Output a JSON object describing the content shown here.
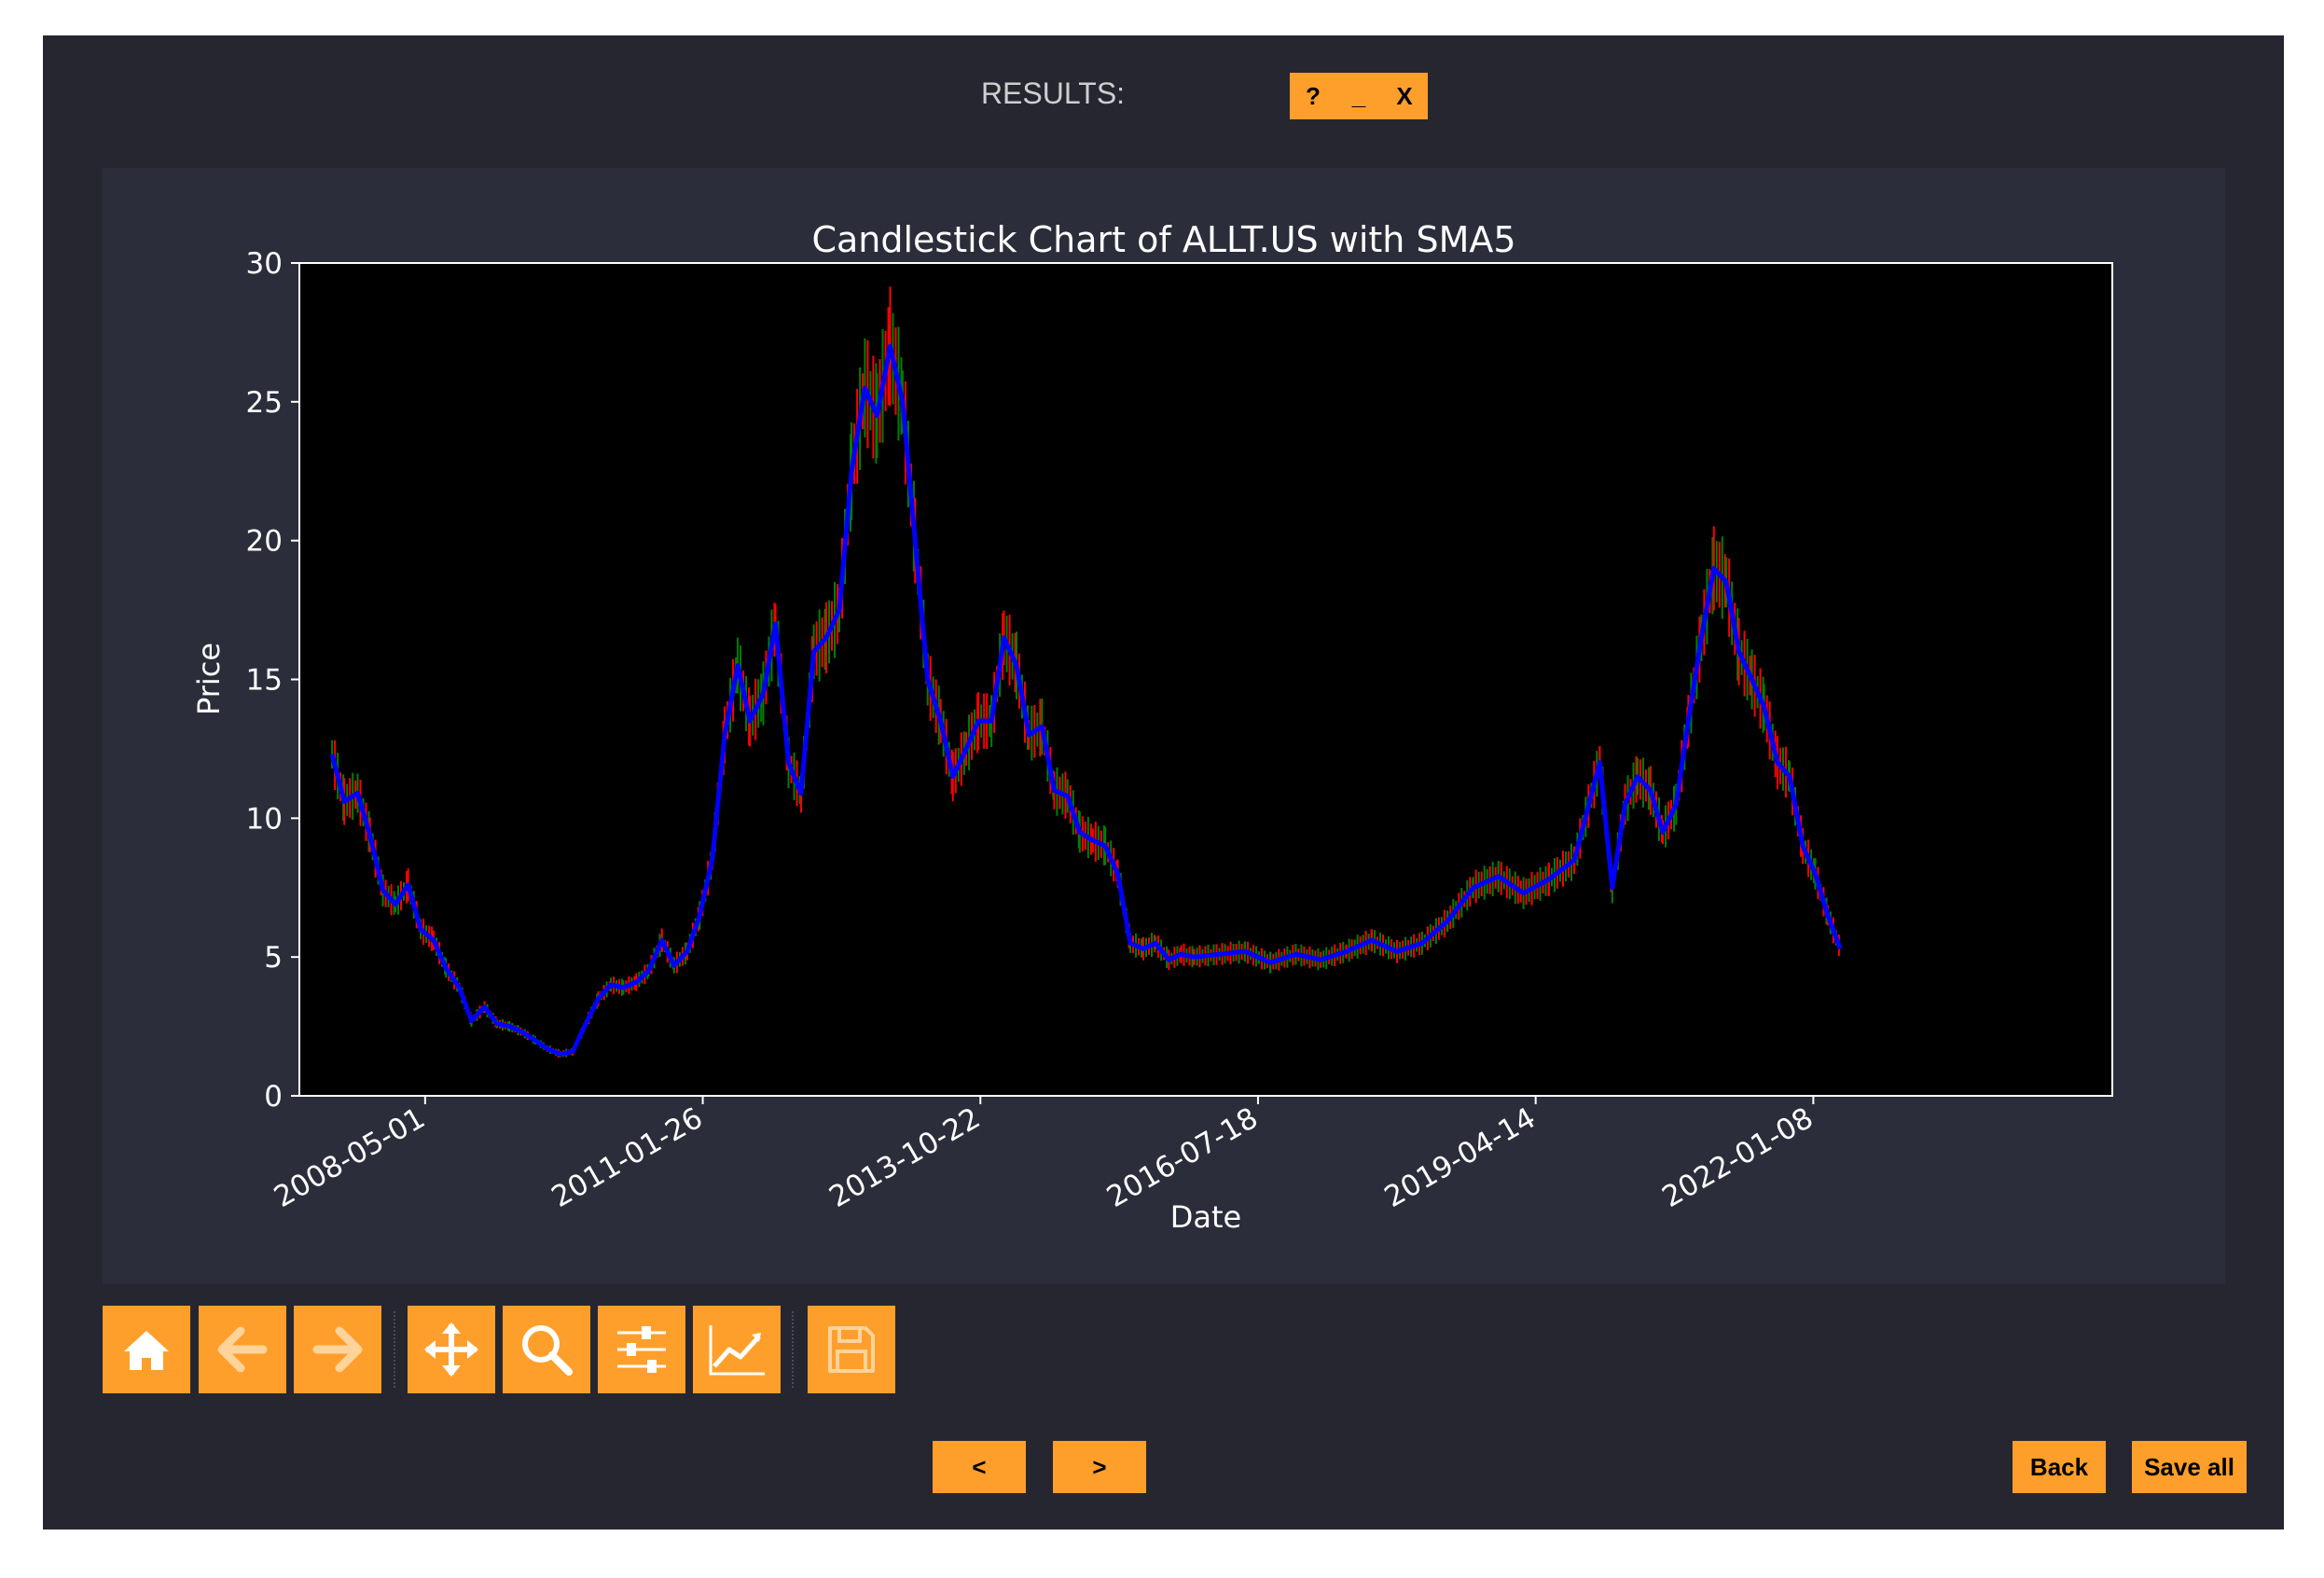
{
  "window": {
    "title": "RESULTS:",
    "help_label": "?",
    "minimize_label": "_",
    "close_label": "X"
  },
  "toolbar": {
    "buttons": [
      {
        "icon": "home-icon"
      },
      {
        "icon": "back-arrow-icon"
      },
      {
        "icon": "forward-arrow-icon"
      },
      {
        "icon": "pan-icon"
      },
      {
        "icon": "zoom-icon"
      },
      {
        "icon": "configure-subplots-icon"
      },
      {
        "icon": "edit-axis-icon"
      },
      {
        "icon": "save-icon"
      }
    ]
  },
  "nav": {
    "prev_label": "<",
    "next_label": ">",
    "back_label": "Back",
    "save_all_label": "Save all"
  },
  "colors": {
    "accent": "#ff9f2b",
    "window_bg": "#262631",
    "panel_bg": "#2c2d3b",
    "plot_bg": "#000000",
    "sma_line": "#0000ff",
    "candle_up": "#008000",
    "candle_down": "#ff0000"
  },
  "chart_data": {
    "type": "line",
    "title": "Candlestick Chart of ALLT.US with SMA5",
    "xlabel": "Date",
    "ylabel": "Price",
    "ylim": [
      0,
      30
    ],
    "y_ticks": [
      0,
      5,
      10,
      15,
      20,
      25,
      30
    ],
    "x_ticks": [
      "2008-05-01",
      "2011-01-26",
      "2013-10-22",
      "2016-07-18",
      "2019-04-14",
      "2022-01-08"
    ],
    "xlim": [
      "2007-02-03",
      "2024-12-20"
    ],
    "grid": false,
    "series": [
      {
        "color": "#0000ff",
        "points": [
          [
            "2007-06-01",
            12.3
          ],
          [
            "2007-07-15",
            10.6
          ],
          [
            "2007-09-01",
            10.9
          ],
          [
            "2007-10-15",
            9.4
          ],
          [
            "2007-12-01",
            7.4
          ],
          [
            "2008-01-15",
            6.9
          ],
          [
            "2008-03-01",
            7.6
          ],
          [
            "2008-04-15",
            6.0
          ],
          [
            "2008-06-01",
            5.6
          ],
          [
            "2008-07-15",
            4.6
          ],
          [
            "2008-09-01",
            3.9
          ],
          [
            "2008-10-15",
            2.7
          ],
          [
            "2008-12-01",
            3.2
          ],
          [
            "2009-01-15",
            2.6
          ],
          [
            "2009-03-01",
            2.5
          ],
          [
            "2009-04-15",
            2.3
          ],
          [
            "2009-06-01",
            2.0
          ],
          [
            "2009-07-15",
            1.7
          ],
          [
            "2009-09-01",
            1.5
          ],
          [
            "2009-10-15",
            1.6
          ],
          [
            "2009-12-01",
            2.6
          ],
          [
            "2010-01-15",
            3.5
          ],
          [
            "2010-03-01",
            4.0
          ],
          [
            "2010-04-15",
            3.9
          ],
          [
            "2010-06-01",
            4.1
          ],
          [
            "2010-07-15",
            4.5
          ],
          [
            "2010-09-01",
            5.6
          ],
          [
            "2010-10-15",
            4.7
          ],
          [
            "2010-12-01",
            5.2
          ],
          [
            "2011-01-15",
            6.5
          ],
          [
            "2011-03-01",
            8.5
          ],
          [
            "2011-04-15",
            13.0
          ],
          [
            "2011-06-01",
            15.5
          ],
          [
            "2011-07-15",
            13.5
          ],
          [
            "2011-09-01",
            14.5
          ],
          [
            "2011-10-15",
            17.0
          ],
          [
            "2011-12-01",
            12.0
          ],
          [
            "2012-01-15",
            10.9
          ],
          [
            "2012-03-01",
            16.0
          ],
          [
            "2012-04-15",
            16.5
          ],
          [
            "2012-06-01",
            17.5
          ],
          [
            "2012-07-15",
            22.5
          ],
          [
            "2012-09-01",
            25.5
          ],
          [
            "2012-10-15",
            24.5
          ],
          [
            "2012-12-01",
            27.0
          ],
          [
            "2013-01-15",
            25.0
          ],
          [
            "2013-03-01",
            20.0
          ],
          [
            "2013-04-15",
            15.0
          ],
          [
            "2013-06-01",
            13.5
          ],
          [
            "2013-07-15",
            11.5
          ],
          [
            "2013-09-01",
            12.5
          ],
          [
            "2013-10-15",
            13.5
          ],
          [
            "2013-12-01",
            13.5
          ],
          [
            "2014-01-15",
            16.5
          ],
          [
            "2014-03-01",
            15.5
          ],
          [
            "2014-04-15",
            13.0
          ],
          [
            "2014-06-01",
            13.3
          ],
          [
            "2014-07-15",
            11.0
          ],
          [
            "2014-09-01",
            10.8
          ],
          [
            "2014-10-15",
            9.5
          ],
          [
            "2014-12-01",
            9.2
          ],
          [
            "2015-01-15",
            9.0
          ],
          [
            "2015-03-01",
            8.0
          ],
          [
            "2015-04-15",
            5.5
          ],
          [
            "2015-06-01",
            5.3
          ],
          [
            "2015-07-15",
            5.5
          ],
          [
            "2015-09-01",
            4.9
          ],
          [
            "2015-10-15",
            5.1
          ],
          [
            "2015-12-01",
            5.0
          ],
          [
            "2016-03-01",
            5.1
          ],
          [
            "2016-06-01",
            5.2
          ],
          [
            "2016-09-01",
            4.8
          ],
          [
            "2016-12-01",
            5.1
          ],
          [
            "2017-03-01",
            4.9
          ],
          [
            "2017-06-01",
            5.2
          ],
          [
            "2017-09-01",
            5.6
          ],
          [
            "2017-12-01",
            5.2
          ],
          [
            "2018-03-01",
            5.5
          ],
          [
            "2018-06-01",
            6.3
          ],
          [
            "2018-09-01",
            7.5
          ],
          [
            "2018-12-01",
            7.9
          ],
          [
            "2019-03-01",
            7.3
          ],
          [
            "2019-06-01",
            7.8
          ],
          [
            "2019-09-01",
            8.5
          ],
          [
            "2019-12-01",
            12.0
          ],
          [
            "2020-01-15",
            7.5
          ],
          [
            "2020-03-01",
            10.5
          ],
          [
            "2020-04-15",
            11.5
          ],
          [
            "2020-06-01",
            11.0
          ],
          [
            "2020-07-15",
            9.5
          ],
          [
            "2020-09-01",
            10.5
          ],
          [
            "2020-10-15",
            13.5
          ],
          [
            "2020-12-01",
            16.5
          ],
          [
            "2021-01-15",
            19.0
          ],
          [
            "2021-03-01",
            18.5
          ],
          [
            "2021-04-15",
            16.0
          ],
          [
            "2021-06-01",
            15.0
          ],
          [
            "2021-07-15",
            14.0
          ],
          [
            "2021-09-01",
            12.0
          ],
          [
            "2021-10-15",
            11.5
          ],
          [
            "2021-12-01",
            9.0
          ],
          [
            "2022-01-15",
            8.0
          ],
          [
            "2022-03-01",
            6.5
          ],
          [
            "2022-04-15",
            5.3
          ]
        ]
      }
    ]
  }
}
